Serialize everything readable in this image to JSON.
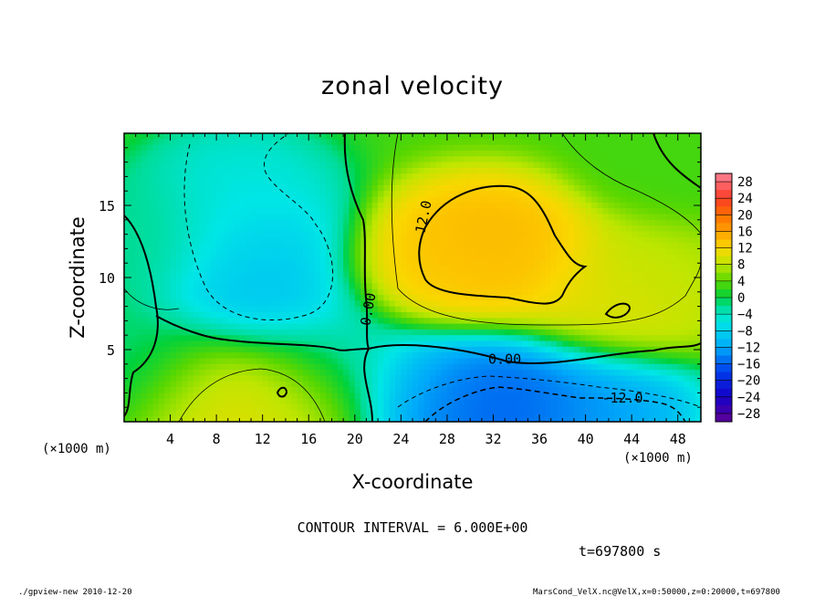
{
  "chart_data": {
    "type": "heatmap",
    "title": "zonal velocity",
    "xlabel": "X-coordinate",
    "ylabel": "Z-coordinate",
    "x_unit_label": "(×1000 m)",
    "y_unit_label": "(×1000 m)",
    "xlim": [
      0,
      50
    ],
    "ylim": [
      0,
      20
    ],
    "xticks": [
      4,
      8,
      12,
      16,
      20,
      24,
      28,
      32,
      36,
      40,
      44,
      48
    ],
    "yticks": [
      5,
      10,
      15
    ],
    "colorbar": {
      "ticks": [
        28,
        24,
        20,
        16,
        12,
        8,
        4,
        0,
        -4,
        -8,
        -12,
        -16,
        -20,
        -24,
        -28
      ],
      "range": [
        -30,
        30
      ]
    },
    "contour_labels": [
      {
        "text": "12.0",
        "x": 26.0,
        "z": 14.2,
        "angle": -78
      },
      {
        "text": "0.00",
        "x": 21.2,
        "z": 7.8,
        "angle": -80
      },
      {
        "text": "0.00",
        "x": 33.0,
        "z": 4.3,
        "angle": 0
      },
      {
        "text": "-12.0",
        "x": 43.2,
        "z": 1.6,
        "angle": 0
      }
    ],
    "features": [
      {
        "x": 11,
        "z": 12,
        "value": -9
      },
      {
        "x": 12,
        "z": 8,
        "value": -10
      },
      {
        "x": 10,
        "z": 16,
        "value": -6
      },
      {
        "x": 31,
        "z": 12.5,
        "value": 15
      },
      {
        "x": 34,
        "z": 11,
        "value": 14
      },
      {
        "x": 28,
        "z": 10.5,
        "value": 13
      },
      {
        "x": 42,
        "z": 8,
        "value": 11
      },
      {
        "x": 45,
        "z": 10,
        "value": 8
      },
      {
        "x": 11.5,
        "z": 1.5,
        "value": 12
      },
      {
        "x": 8,
        "z": 2,
        "value": 10
      },
      {
        "x": 14,
        "z": 1.5,
        "value": 8
      },
      {
        "x": 31,
        "z": 1.2,
        "value": -18
      },
      {
        "x": 35,
        "z": 1.5,
        "value": -16
      },
      {
        "x": 27,
        "z": 2,
        "value": -12
      },
      {
        "x": 41,
        "z": 1,
        "value": -13
      },
      {
        "x": 18,
        "z": 4,
        "value": -4
      },
      {
        "x": 2,
        "z": 4,
        "value": -2
      },
      {
        "x": 2,
        "z": 13,
        "value": -2
      },
      {
        "x": 48,
        "z": 18,
        "value": 3
      }
    ],
    "background_value": 3
  },
  "annotations": {
    "contour_interval": "CONTOUR INTERVAL = 6.000E+00",
    "time": "t=697800 s",
    "footer_left": "./gpview-new  2010-12-20",
    "footer_right": "MarsCond_VelX.nc@VelX,x=0:50000,z=0:20000,t=697800"
  }
}
